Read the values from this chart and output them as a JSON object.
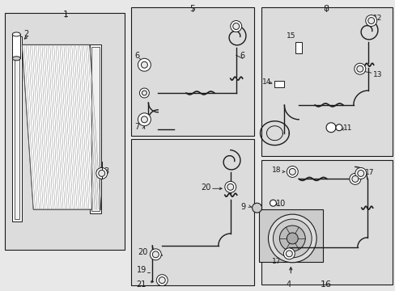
{
  "bg_color": "#e8e8e8",
  "line_color": "#1a1a1a",
  "box_bg": "#dcdcdc",
  "white": "#ffffff",
  "fig_width": 4.89,
  "fig_height": 3.6,
  "dpi": 100
}
